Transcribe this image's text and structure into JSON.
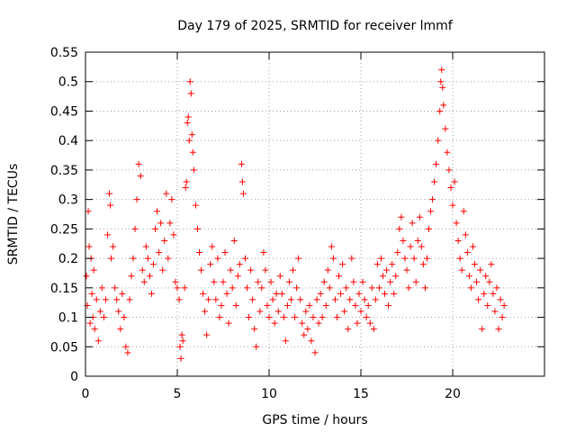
{
  "chart_data": {
    "type": "scatter",
    "title": "Day 179 of 2025, SRMTID for receiver lmmf",
    "xlabel": "GPS time / hours",
    "ylabel": "SRMTID / TECUs",
    "xlim": [
      0,
      25
    ],
    "ylim": [
      0,
      0.55
    ],
    "xticks": [
      0,
      5,
      10,
      15,
      20
    ],
    "xtick_labels": [
      "0",
      "5",
      "10",
      "15",
      "20"
    ],
    "yticks": [
      0,
      0.05,
      0.1,
      0.15,
      0.2,
      0.25,
      0.3,
      0.35,
      0.4,
      0.45,
      0.5,
      0.55
    ],
    "ytick_labels": [
      "0",
      "0.05",
      "0.1",
      "0.15",
      "0.2",
      "0.25",
      "0.3",
      "0.35",
      "0.4",
      "0.45",
      "0.5",
      "0.55"
    ],
    "grid": true,
    "marker": "+",
    "color": "#ff0000",
    "series": [
      {
        "name": "SRMTID",
        "points": [
          [
            0.05,
            0.17
          ],
          [
            0.1,
            0.12
          ],
          [
            0.15,
            0.28
          ],
          [
            0.2,
            0.22
          ],
          [
            0.25,
            0.09
          ],
          [
            0.3,
            0.2
          ],
          [
            0.35,
            0.14
          ],
          [
            0.4,
            0.1
          ],
          [
            0.45,
            0.18
          ],
          [
            0.5,
            0.08
          ],
          [
            0.6,
            0.13
          ],
          [
            0.7,
            0.06
          ],
          [
            0.8,
            0.11
          ],
          [
            0.9,
            0.15
          ],
          [
            1.0,
            0.1
          ],
          [
            1.1,
            0.13
          ],
          [
            1.2,
            0.24
          ],
          [
            1.3,
            0.31
          ],
          [
            1.35,
            0.29
          ],
          [
            1.4,
            0.2
          ],
          [
            1.5,
            0.22
          ],
          [
            1.6,
            0.15
          ],
          [
            1.7,
            0.13
          ],
          [
            1.8,
            0.11
          ],
          [
            1.9,
            0.08
          ],
          [
            2.0,
            0.14
          ],
          [
            2.1,
            0.1
          ],
          [
            2.2,
            0.05
          ],
          [
            2.3,
            0.04
          ],
          [
            2.4,
            0.13
          ],
          [
            2.5,
            0.17
          ],
          [
            2.6,
            0.2
          ],
          [
            2.7,
            0.25
          ],
          [
            2.8,
            0.3
          ],
          [
            2.9,
            0.36
          ],
          [
            3.0,
            0.34
          ],
          [
            3.1,
            0.18
          ],
          [
            3.2,
            0.16
          ],
          [
            3.3,
            0.22
          ],
          [
            3.4,
            0.2
          ],
          [
            3.5,
            0.17
          ],
          [
            3.6,
            0.14
          ],
          [
            3.7,
            0.19
          ],
          [
            3.8,
            0.25
          ],
          [
            3.9,
            0.28
          ],
          [
            4.0,
            0.21
          ],
          [
            4.1,
            0.26
          ],
          [
            4.2,
            0.18
          ],
          [
            4.3,
            0.23
          ],
          [
            4.4,
            0.31
          ],
          [
            4.5,
            0.2
          ],
          [
            4.6,
            0.26
          ],
          [
            4.7,
            0.3
          ],
          [
            4.8,
            0.24
          ],
          [
            4.9,
            0.16
          ],
          [
            5.0,
            0.15
          ],
          [
            5.1,
            0.13
          ],
          [
            5.15,
            0.05
          ],
          [
            5.2,
            0.03
          ],
          [
            5.25,
            0.07
          ],
          [
            5.3,
            0.06
          ],
          [
            5.4,
            0.15
          ],
          [
            5.45,
            0.32
          ],
          [
            5.5,
            0.33
          ],
          [
            5.55,
            0.43
          ],
          [
            5.6,
            0.44
          ],
          [
            5.65,
            0.4
          ],
          [
            5.7,
            0.5
          ],
          [
            5.75,
            0.48
          ],
          [
            5.8,
            0.41
          ],
          [
            5.85,
            0.38
          ],
          [
            5.9,
            0.35
          ],
          [
            6.0,
            0.29
          ],
          [
            6.1,
            0.25
          ],
          [
            6.2,
            0.21
          ],
          [
            6.3,
            0.18
          ],
          [
            6.4,
            0.14
          ],
          [
            6.5,
            0.11
          ],
          [
            6.6,
            0.07
          ],
          [
            6.7,
            0.13
          ],
          [
            6.8,
            0.19
          ],
          [
            6.9,
            0.22
          ],
          [
            7.0,
            0.16
          ],
          [
            7.1,
            0.13
          ],
          [
            7.2,
            0.2
          ],
          [
            7.3,
            0.1
          ],
          [
            7.4,
            0.12
          ],
          [
            7.5,
            0.16
          ],
          [
            7.6,
            0.21
          ],
          [
            7.7,
            0.14
          ],
          [
            7.8,
            0.09
          ],
          [
            7.9,
            0.18
          ],
          [
            8.0,
            0.15
          ],
          [
            8.1,
            0.23
          ],
          [
            8.2,
            0.12
          ],
          [
            8.3,
            0.17
          ],
          [
            8.4,
            0.19
          ],
          [
            8.5,
            0.36
          ],
          [
            8.55,
            0.33
          ],
          [
            8.6,
            0.31
          ],
          [
            8.7,
            0.2
          ],
          [
            8.8,
            0.15
          ],
          [
            8.9,
            0.1
          ],
          [
            9.0,
            0.18
          ],
          [
            9.1,
            0.13
          ],
          [
            9.2,
            0.08
          ],
          [
            9.3,
            0.05
          ],
          [
            9.4,
            0.16
          ],
          [
            9.5,
            0.11
          ],
          [
            9.6,
            0.15
          ],
          [
            9.7,
            0.21
          ],
          [
            9.8,
            0.18
          ],
          [
            9.9,
            0.12
          ],
          [
            10.0,
            0.1
          ],
          [
            10.1,
            0.16
          ],
          [
            10.2,
            0.13
          ],
          [
            10.3,
            0.09
          ],
          [
            10.4,
            0.14
          ],
          [
            10.5,
            0.11
          ],
          [
            10.6,
            0.17
          ],
          [
            10.7,
            0.14
          ],
          [
            10.8,
            0.1
          ],
          [
            10.9,
            0.06
          ],
          [
            11.0,
            0.12
          ],
          [
            11.1,
            0.16
          ],
          [
            11.2,
            0.13
          ],
          [
            11.3,
            0.18
          ],
          [
            11.4,
            0.1
          ],
          [
            11.5,
            0.15
          ],
          [
            11.6,
            0.2
          ],
          [
            11.7,
            0.13
          ],
          [
            11.8,
            0.09
          ],
          [
            11.9,
            0.07
          ],
          [
            12.0,
            0.11
          ],
          [
            12.1,
            0.08
          ],
          [
            12.2,
            0.12
          ],
          [
            12.3,
            0.06
          ],
          [
            12.4,
            0.1
          ],
          [
            12.5,
            0.04
          ],
          [
            12.6,
            0.13
          ],
          [
            12.7,
            0.09
          ],
          [
            12.8,
            0.14
          ],
          [
            12.9,
            0.1
          ],
          [
            13.0,
            0.16
          ],
          [
            13.1,
            0.12
          ],
          [
            13.2,
            0.18
          ],
          [
            13.3,
            0.15
          ],
          [
            13.4,
            0.22
          ],
          [
            13.5,
            0.2
          ],
          [
            13.6,
            0.13
          ],
          [
            13.7,
            0.1
          ],
          [
            13.8,
            0.17
          ],
          [
            13.9,
            0.14
          ],
          [
            14.0,
            0.19
          ],
          [
            14.1,
            0.11
          ],
          [
            14.2,
            0.15
          ],
          [
            14.3,
            0.08
          ],
          [
            14.4,
            0.13
          ],
          [
            14.5,
            0.2
          ],
          [
            14.6,
            0.16
          ],
          [
            14.7,
            0.12
          ],
          [
            14.8,
            0.09
          ],
          [
            14.9,
            0.14
          ],
          [
            15.0,
            0.11
          ],
          [
            15.1,
            0.16
          ],
          [
            15.2,
            0.13
          ],
          [
            15.3,
            0.1
          ],
          [
            15.4,
            0.12
          ],
          [
            15.5,
            0.09
          ],
          [
            15.6,
            0.15
          ],
          [
            15.7,
            0.08
          ],
          [
            15.8,
            0.13
          ],
          [
            15.9,
            0.19
          ],
          [
            16.0,
            0.15
          ],
          [
            16.1,
            0.2
          ],
          [
            16.2,
            0.17
          ],
          [
            16.3,
            0.14
          ],
          [
            16.4,
            0.18
          ],
          [
            16.5,
            0.12
          ],
          [
            16.6,
            0.16
          ],
          [
            16.7,
            0.19
          ],
          [
            16.8,
            0.14
          ],
          [
            16.9,
            0.17
          ],
          [
            17.0,
            0.21
          ],
          [
            17.1,
            0.25
          ],
          [
            17.2,
            0.27
          ],
          [
            17.3,
            0.23
          ],
          [
            17.4,
            0.2
          ],
          [
            17.5,
            0.18
          ],
          [
            17.6,
            0.15
          ],
          [
            17.7,
            0.22
          ],
          [
            17.8,
            0.26
          ],
          [
            17.9,
            0.2
          ],
          [
            18.0,
            0.16
          ],
          [
            18.1,
            0.23
          ],
          [
            18.2,
            0.27
          ],
          [
            18.3,
            0.22
          ],
          [
            18.4,
            0.19
          ],
          [
            18.5,
            0.15
          ],
          [
            18.6,
            0.2
          ],
          [
            18.7,
            0.25
          ],
          [
            18.8,
            0.28
          ],
          [
            18.9,
            0.3
          ],
          [
            19.0,
            0.33
          ],
          [
            19.1,
            0.36
          ],
          [
            19.2,
            0.4
          ],
          [
            19.3,
            0.45
          ],
          [
            19.35,
            0.5
          ],
          [
            19.4,
            0.52
          ],
          [
            19.45,
            0.49
          ],
          [
            19.5,
            0.46
          ],
          [
            19.6,
            0.42
          ],
          [
            19.7,
            0.38
          ],
          [
            19.8,
            0.35
          ],
          [
            19.9,
            0.32
          ],
          [
            20.0,
            0.29
          ],
          [
            20.1,
            0.33
          ],
          [
            20.2,
            0.26
          ],
          [
            20.3,
            0.23
          ],
          [
            20.4,
            0.2
          ],
          [
            20.5,
            0.18
          ],
          [
            20.6,
            0.28
          ],
          [
            20.7,
            0.24
          ],
          [
            20.8,
            0.21
          ],
          [
            20.9,
            0.17
          ],
          [
            21.0,
            0.15
          ],
          [
            21.1,
            0.22
          ],
          [
            21.2,
            0.19
          ],
          [
            21.3,
            0.16
          ],
          [
            21.4,
            0.13
          ],
          [
            21.5,
            0.18
          ],
          [
            21.6,
            0.08
          ],
          [
            21.7,
            0.14
          ],
          [
            21.8,
            0.17
          ],
          [
            21.9,
            0.12
          ],
          [
            22.0,
            0.16
          ],
          [
            22.1,
            0.19
          ],
          [
            22.2,
            0.14
          ],
          [
            22.3,
            0.11
          ],
          [
            22.4,
            0.15
          ],
          [
            22.5,
            0.08
          ],
          [
            22.6,
            0.13
          ],
          [
            22.7,
            0.1
          ],
          [
            22.8,
            0.12
          ]
        ]
      }
    ]
  }
}
